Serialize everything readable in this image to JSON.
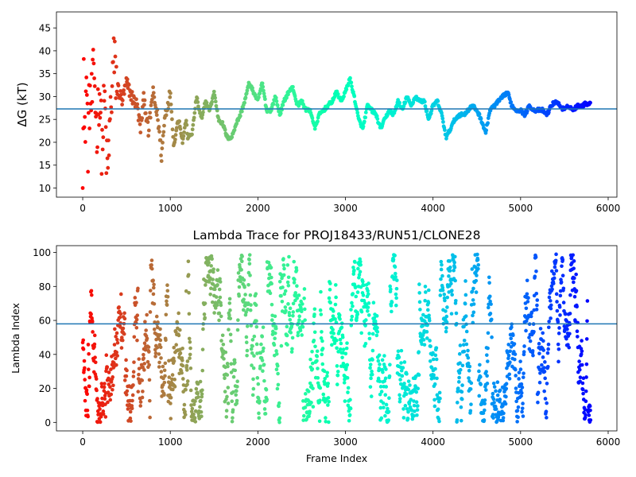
{
  "chart_data": [
    {
      "type": "scatter",
      "title": "",
      "xlabel": "",
      "ylabel": "ΔG (kT)",
      "xlim": [
        -300,
        6100
      ],
      "ylim": [
        8,
        48.5
      ],
      "xticks": [
        0,
        1000,
        2000,
        3000,
        4000,
        5000,
        6000
      ],
      "yticks": [
        10,
        15,
        20,
        25,
        30,
        35,
        40,
        45
      ],
      "colormap": "rainbow (reversed over frame index: red at 0, violet at end)",
      "hline": 27.3,
      "hline_color": "#1f77b4",
      "n_frames": 5800,
      "trace_anchors": [
        [
          0,
          10
        ],
        [
          10,
          43
        ],
        [
          20,
          16
        ],
        [
          40,
          35
        ],
        [
          60,
          20
        ],
        [
          80,
          30
        ],
        [
          100,
          28
        ],
        [
          130,
          36
        ],
        [
          160,
          22
        ],
        [
          190,
          32
        ],
        [
          220,
          18
        ],
        [
          250,
          30
        ],
        [
          280,
          12
        ],
        [
          320,
          27
        ],
        [
          350,
          38
        ],
        [
          400,
          32
        ],
        [
          450,
          29
        ],
        [
          500,
          33
        ],
        [
          560,
          30
        ],
        [
          620,
          28
        ],
        [
          660,
          23
        ],
        [
          700,
          30
        ],
        [
          750,
          22
        ],
        [
          800,
          31
        ],
        [
          860,
          25
        ],
        [
          900,
          17
        ],
        [
          940,
          26
        ],
        [
          980,
          29
        ],
        [
          1000,
          31
        ],
        [
          1040,
          19
        ],
        [
          1080,
          24
        ],
        [
          1100,
          25
        ],
        [
          1140,
          20
        ],
        [
          1180,
          25
        ],
        [
          1200,
          21
        ],
        [
          1250,
          22
        ],
        [
          1300,
          30
        ],
        [
          1330,
          27
        ],
        [
          1360,
          25
        ],
        [
          1400,
          29
        ],
        [
          1450,
          27
        ],
        [
          1500,
          31
        ],
        [
          1550,
          25
        ],
        [
          1600,
          24
        ],
        [
          1650,
          21
        ],
        [
          1700,
          21
        ],
        [
          1750,
          24
        ],
        [
          1800,
          26
        ],
        [
          1850,
          29
        ],
        [
          1900,
          33
        ],
        [
          1950,
          31
        ],
        [
          2000,
          29
        ],
        [
          2050,
          33
        ],
        [
          2100,
          27
        ],
        [
          2150,
          27
        ],
        [
          2200,
          30
        ],
        [
          2250,
          26
        ],
        [
          2300,
          29
        ],
        [
          2350,
          31
        ],
        [
          2400,
          32
        ],
        [
          2450,
          28
        ],
        [
          2500,
          29
        ],
        [
          2550,
          27
        ],
        [
          2600,
          27
        ],
        [
          2650,
          23
        ],
        [
          2700,
          26
        ],
        [
          2750,
          27
        ],
        [
          2800,
          28
        ],
        [
          2850,
          29
        ],
        [
          2900,
          31
        ],
        [
          2950,
          29
        ],
        [
          3000,
          31
        ],
        [
          3050,
          34
        ],
        [
          3100,
          30
        ],
        [
          3150,
          25
        ],
        [
          3200,
          23
        ],
        [
          3250,
          28
        ],
        [
          3300,
          27
        ],
        [
          3350,
          26
        ],
        [
          3400,
          23
        ],
        [
          3450,
          25
        ],
        [
          3500,
          27
        ],
        [
          3550,
          26
        ],
        [
          3600,
          29
        ],
        [
          3650,
          27
        ],
        [
          3700,
          30
        ],
        [
          3750,
          28
        ],
        [
          3800,
          30
        ],
        [
          3850,
          29
        ],
        [
          3900,
          29
        ],
        [
          3950,
          25
        ],
        [
          4000,
          28
        ],
        [
          4050,
          29
        ],
        [
          4100,
          26
        ],
        [
          4150,
          21
        ],
        [
          4200,
          23
        ],
        [
          4250,
          25
        ],
        [
          4300,
          26
        ],
        [
          4350,
          26
        ],
        [
          4400,
          27
        ],
        [
          4450,
          28
        ],
        [
          4500,
          27
        ],
        [
          4550,
          25
        ],
        [
          4600,
          22
        ],
        [
          4650,
          27
        ],
        [
          4700,
          28
        ],
        [
          4750,
          29
        ],
        [
          4800,
          30
        ],
        [
          4850,
          31
        ],
        [
          4900,
          28
        ],
        [
          4950,
          27
        ],
        [
          5000,
          27
        ],
        [
          5050,
          26
        ],
        [
          5100,
          28
        ],
        [
          5150,
          27
        ],
        [
          5200,
          27
        ],
        [
          5250,
          27
        ],
        [
          5300,
          26
        ],
        [
          5350,
          28
        ],
        [
          5400,
          29
        ],
        [
          5450,
          28
        ],
        [
          5500,
          27
        ],
        [
          5550,
          28
        ],
        [
          5600,
          27
        ],
        [
          5650,
          28
        ],
        [
          5700,
          28
        ],
        [
          5750,
          28.5
        ],
        [
          5800,
          28.3
        ]
      ]
    },
    {
      "type": "scatter",
      "title": "Lambda Trace for PROJ18433/RUN51/CLONE28",
      "xlabel": "Frame Index",
      "ylabel": "Lambda Index",
      "xlim": [
        -300,
        6100
      ],
      "ylim": [
        -5,
        104
      ],
      "xticks": [
        0,
        1000,
        2000,
        3000,
        4000,
        5000,
        6000
      ],
      "yticks": [
        0,
        20,
        40,
        60,
        80,
        100
      ],
      "colormap": "rainbow (reversed over frame index: red at 0, violet at end)",
      "hline": 58,
      "hline_color": "#1f77b4",
      "n_frames": 5800,
      "value_range": [
        0,
        99
      ],
      "density_note": "dense vertical bands of points spanning 0–99"
    }
  ]
}
